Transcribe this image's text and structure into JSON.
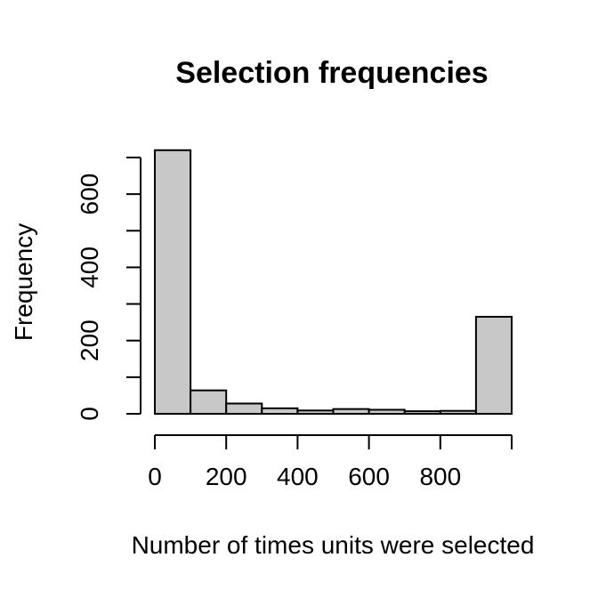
{
  "chart_data": {
    "type": "bar",
    "title": "Selection frequencies",
    "xlabel": "Number of times units were selected",
    "ylabel": "Frequency",
    "bins": [
      {
        "start": 0,
        "end": 100,
        "value": 720
      },
      {
        "start": 100,
        "end": 200,
        "value": 64
      },
      {
        "start": 200,
        "end": 300,
        "value": 28
      },
      {
        "start": 300,
        "end": 400,
        "value": 15
      },
      {
        "start": 400,
        "end": 500,
        "value": 9
      },
      {
        "start": 500,
        "end": 600,
        "value": 13
      },
      {
        "start": 600,
        "end": 700,
        "value": 11
      },
      {
        "start": 700,
        "end": 800,
        "value": 7
      },
      {
        "start": 800,
        "end": 900,
        "value": 8
      },
      {
        "start": 900,
        "end": 1000,
        "value": 265
      }
    ],
    "xlim": [
      0,
      1000
    ],
    "ylim": [
      0,
      700
    ],
    "x_ticks": [
      0,
      200,
      400,
      600,
      800
    ],
    "x_tick_marks": [
      0,
      200,
      400,
      600,
      800,
      1000
    ],
    "y_ticks": [
      0,
      200,
      400,
      600
    ],
    "y_tick_marks": [
      0,
      100,
      200,
      300,
      400,
      500,
      600,
      700
    ],
    "bar_color": "#c8c8c8",
    "grid": false,
    "legend": "none"
  }
}
